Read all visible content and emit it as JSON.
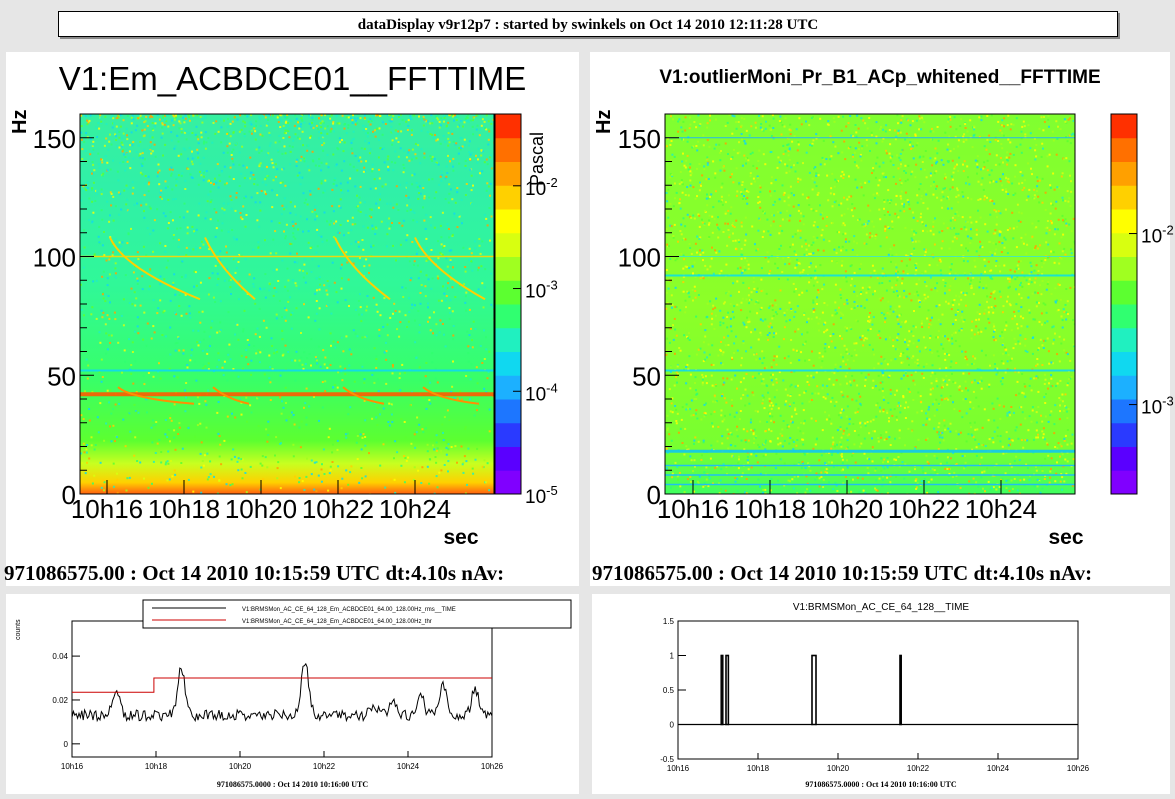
{
  "header": {
    "title": "dataDisplay v9r12p7 : started by swinkels on Oct 14 2010 12:11:28 UTC"
  },
  "panels": [
    {
      "title": "V1:Em_ACBDCE01__FFTTIME",
      "footer": "971086575.00 : Oct 14 2010 10:15:59 UTC dt:4.10s nAv:"
    },
    {
      "title": "V1:outlierMoni_Pr_B1_ACp_whitened__FFTTIME",
      "footer": "971086575.00 : Oct 14 2010 10:15:59 UTC dt:4.10s nAv:"
    },
    {
      "title": "",
      "footer": "971086575.0000 : Oct 14 2010 10:16:00 UTC"
    },
    {
      "title": "V1:BRMSMon_AC_CE_64_128__TIME",
      "footer": "971086575.0000 : Oct 14 2010 10:16:00 UTC"
    }
  ],
  "chart_data": [
    {
      "type": "heatmap",
      "title": "V1:Em_ACBDCE01__FFTTIME",
      "xlabel": "sec",
      "ylabel": "Hz",
      "zlabel": "Pascal",
      "xticks": [
        "10h16",
        "10h18",
        "10h20",
        "10h22",
        "10h24"
      ],
      "yticks": [
        0,
        50,
        100,
        150
      ],
      "ylim": [
        0,
        160
      ],
      "zscale": "log",
      "zlim": [
        1e-05,
        0.05
      ],
      "zticks": [
        {
          "base": "10",
          "exp": "-2",
          "value": 0.01
        },
        {
          "base": "10",
          "exp": "-3",
          "value": 0.001
        },
        {
          "base": "10",
          "exp": "-4",
          "value": 0.0001
        },
        {
          "base": "10",
          "exp": "-5",
          "value": 1e-05
        }
      ],
      "colorscale": [
        "#8000ff",
        "#5a00ff",
        "#2a3aff",
        "#1d76ff",
        "#1cb0ff",
        "#10d8f0",
        "#20f0c0",
        "#30ff70",
        "#5cff30",
        "#a0ff20",
        "#d8ff10",
        "#ffff00",
        "#ffd000",
        "#ffa000",
        "#ff7000",
        "#ff3000"
      ],
      "lines_hz": [
        42,
        52,
        100
      ]
    },
    {
      "type": "heatmap",
      "title": "V1:outlierMoni_Pr_B1_ACp_whitened__FFTTIME",
      "xlabel": "sec",
      "ylabel": "Hz",
      "xticks": [
        "10h16",
        "10h18",
        "10h20",
        "10h22",
        "10h24"
      ],
      "yticks": [
        0,
        50,
        100,
        150
      ],
      "ylim": [
        0,
        160
      ],
      "zscale": "log",
      "zlim": [
        0.0003,
        0.05
      ],
      "zticks": [
        {
          "base": "10",
          "exp": "-2",
          "value": 0.01
        },
        {
          "base": "10",
          "exp": "-3",
          "value": 0.001
        }
      ],
      "colorscale": [
        "#8000ff",
        "#5a00ff",
        "#2a3aff",
        "#1d76ff",
        "#1cb0ff",
        "#10d8f0",
        "#20f0c0",
        "#30ff70",
        "#5cff30",
        "#a0ff20",
        "#d8ff10",
        "#ffff00",
        "#ffd000",
        "#ffa000",
        "#ff7000",
        "#ff3000"
      ],
      "lines_hz": [
        18,
        52,
        92,
        100,
        150
      ]
    },
    {
      "type": "line",
      "ylabel": "counts",
      "xticks": [
        "10h16",
        "10h18",
        "10h20",
        "10h22",
        "10h24",
        "10h26"
      ],
      "xlim": [
        0,
        10
      ],
      "ylim": [
        -0.006,
        0.056
      ],
      "yticks": [
        {
          "v": 0,
          "l": "0"
        },
        {
          "v": 0.02,
          "l": "0.02"
        },
        {
          "v": 0.04,
          "l": "0.04"
        }
      ],
      "legend": "top-right",
      "series": [
        {
          "name": "V1:BRMSMon_AC_CE_64_128_Em_ACBDCE01_64.00_128.00Hz_rms__TIME",
          "color": "#000000",
          "peaks": [
            [
              1.05,
              0.024
            ],
            [
              2.6,
              0.035
            ],
            [
              5.55,
              0.038
            ],
            [
              7.2,
              0.018
            ],
            [
              7.65,
              0.019
            ],
            [
              8.3,
              0.022
            ],
            [
              8.85,
              0.027
            ],
            [
              9.6,
              0.025
            ]
          ],
          "base": 0.013
        },
        {
          "name": "V1:BRMSMon_AC_CE_64_128_Em_ACBDCE01_64.00_128.00Hz_thr",
          "color": "#cc0000",
          "x": [
            0,
            1.95,
            1.95,
            10
          ],
          "y": [
            0.0235,
            0.0235,
            0.03,
            0.03
          ]
        }
      ]
    },
    {
      "type": "line",
      "title": "V1:BRMSMon_AC_CE_64_128__TIME",
      "xticks": [
        "10h16",
        "10h18",
        "10h20",
        "10h22",
        "10h24",
        "10h26"
      ],
      "xlim": [
        0,
        10
      ],
      "ylim": [
        -0.5,
        1.5
      ],
      "yticks": [
        {
          "v": -0.5,
          "l": "-0.5"
        },
        {
          "v": 0,
          "l": "0"
        },
        {
          "v": 0.5,
          "l": "0.5"
        },
        {
          "v": 1,
          "l": "1"
        },
        {
          "v": 1.5,
          "l": "1.5"
        }
      ],
      "series": [
        {
          "color": "#000000",
          "pulses": [
            [
              1.08,
              1.12
            ],
            [
              1.2,
              1.26
            ],
            [
              3.35,
              3.45
            ],
            [
              5.55,
              5.58
            ]
          ]
        }
      ]
    }
  ]
}
